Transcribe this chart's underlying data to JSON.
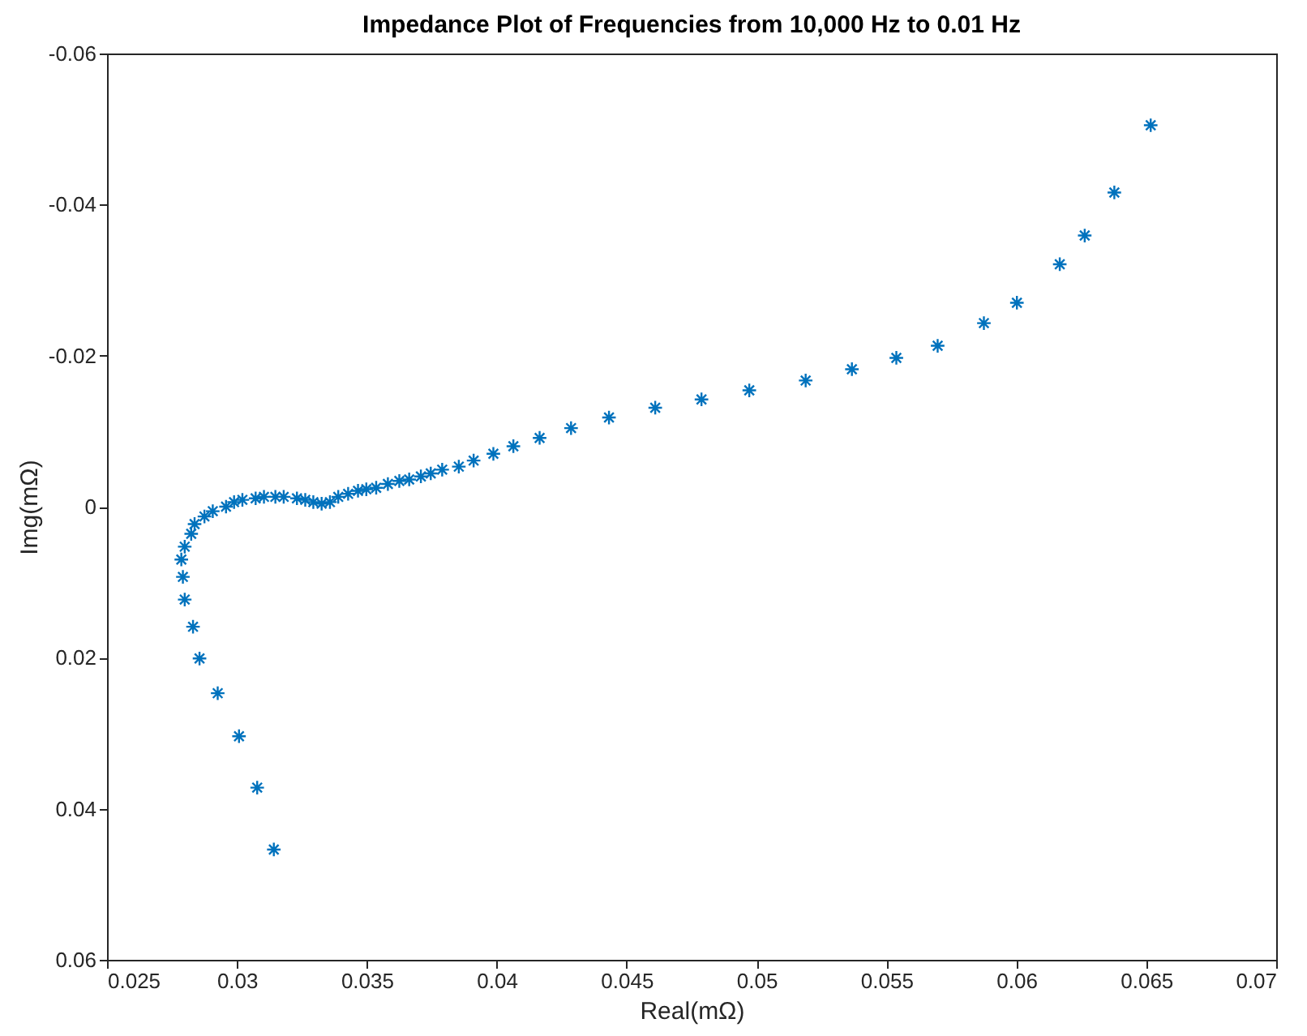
{
  "chart_data": {
    "type": "scatter",
    "title": "Impedance Plot of Frequencies from 10,000 Hz to 0.01 Hz",
    "xlabel": "Real(mΩ)",
    "ylabel": "Img(mΩ)",
    "x": [
      0.03142,
      0.03078,
      0.03008,
      0.02926,
      0.02856,
      0.02831,
      0.02799,
      0.02792,
      0.02786,
      0.02799,
      0.02824,
      0.02837,
      0.02875,
      0.02907,
      0.02958,
      0.02989,
      0.03021,
      0.03072,
      0.03104,
      0.03148,
      0.0318,
      0.03231,
      0.03263,
      0.03294,
      0.03326,
      0.03358,
      0.0339,
      0.03428,
      0.03466,
      0.03498,
      0.03536,
      0.03581,
      0.03625,
      0.03663,
      0.03708,
      0.03746,
      0.0379,
      0.03854,
      0.03911,
      0.03987,
      0.04064,
      0.04165,
      0.04286,
      0.04432,
      0.0461,
      0.04788,
      0.04972,
      0.05189,
      0.05367,
      0.05538,
      0.05697,
      0.05875,
      0.06002,
      0.06167,
      0.06263,
      0.06377,
      0.06517
    ],
    "series": [
      {
        "color": "#0072bd",
        "values": [
          0.0454,
          0.0372,
          0.0304,
          0.0247,
          0.0201,
          0.0159,
          0.0123,
          0.0093,
          0.007,
          0.0053,
          0.0036,
          0.0023,
          0.0013,
          0.0006,
          0,
          -0.0006,
          -0.0009,
          -0.0011,
          -0.0013,
          -0.0013,
          -0.0013,
          -0.0011,
          -0.0009,
          -0.0006,
          -0.0004,
          -0.0006,
          -0.0013,
          -0.0017,
          -0.0021,
          -0.0023,
          -0.0025,
          -0.003,
          -0.0034,
          -0.0036,
          -0.004,
          -0.0044,
          -0.0049,
          -0.0053,
          -0.0061,
          -0.007,
          -0.008,
          -0.0091,
          -0.0104,
          -0.0118,
          -0.0131,
          -0.0142,
          -0.0154,
          -0.0167,
          -0.0182,
          -0.0197,
          -0.0213,
          -0.0243,
          -0.027,
          -0.0321,
          -0.0359,
          -0.0416,
          -0.0505
        ]
      }
    ],
    "marker": "cross",
    "xlim": [
      0.025,
      0.07
    ],
    "xticks": [
      0.025,
      0.03,
      0.035,
      0.04,
      0.045,
      0.05,
      0.055,
      0.06,
      0.065,
      0.07
    ],
    "ylim": [
      0.06,
      -0.06
    ],
    "yticks": [
      -0.06,
      -0.04,
      -0.02,
      0,
      0.02,
      0.04,
      0.06
    ]
  }
}
